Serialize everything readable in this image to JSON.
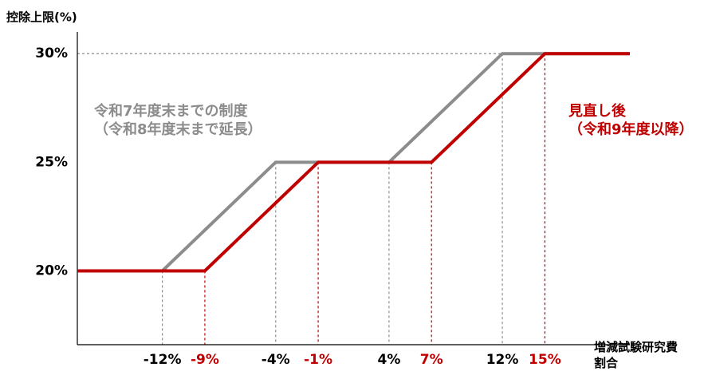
{
  "chart_data": {
    "type": "line",
    "y_label": "控除上限(%)",
    "x_label": "増減試験研究費割合",
    "series": [
      {
        "name": "令和7年度末までの制度",
        "note": "（令和8年度末まで延長）",
        "color": "#8c8c8c",
        "x": [
          -18,
          -12,
          -4,
          4,
          12,
          21
        ],
        "values": [
          20,
          20,
          25,
          25,
          30,
          30
        ]
      },
      {
        "name": "見直し後",
        "note": "（令和9年度以降）",
        "color": "#c00000",
        "x": [
          -18,
          -9,
          -1,
          7,
          15,
          21
        ],
        "values": [
          20,
          20,
          25,
          25,
          30,
          30
        ]
      }
    ],
    "xlim": [
      -18,
      21
    ],
    "ylim": [
      16.6,
      31
    ],
    "yticks": [
      {
        "value": 20,
        "label": "20%"
      },
      {
        "value": 25,
        "label": "25%"
      },
      {
        "value": 30,
        "label": "30%"
      }
    ],
    "xticks": [
      {
        "value": -12,
        "label": "-12%"
      },
      {
        "value": -9,
        "label": "-9%"
      },
      {
        "value": -4,
        "label": "-4%"
      },
      {
        "value": -1,
        "label": "-1%"
      },
      {
        "value": 4,
        "label": "4%"
      },
      {
        "value": 7,
        "label": "7%"
      },
      {
        "value": 12,
        "label": "12%"
      },
      {
        "value": 15,
        "label": "15%"
      }
    ],
    "xtick_colors": [
      "#000000",
      "#c00000",
      "#000000",
      "#c00000",
      "#000000",
      "#c00000",
      "#000000",
      "#c00000"
    ]
  }
}
